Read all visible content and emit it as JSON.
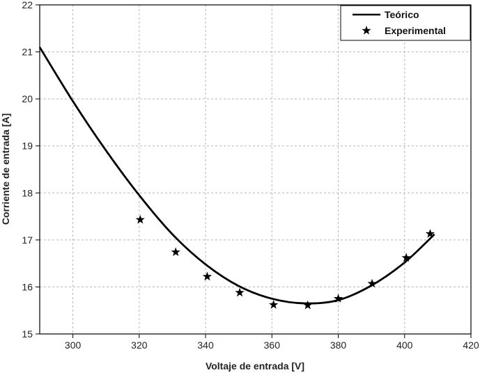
{
  "chart_data": {
    "type": "line",
    "xlabel": "Voltaje de entrada [V]",
    "ylabel": "Corriente de entrada [A]",
    "xlim": [
      290,
      420
    ],
    "ylim": [
      15,
      22
    ],
    "xticks": [
      300,
      320,
      340,
      360,
      380,
      400,
      420
    ],
    "yticks": [
      15,
      16,
      17,
      18,
      19,
      20,
      21,
      22
    ],
    "grid": true,
    "legend_position": "top-right",
    "series": [
      {
        "name": "Teórico",
        "kind": "line",
        "color": "#000000",
        "x": [
          290,
          300,
          310,
          320,
          330,
          340,
          350,
          360,
          370,
          380,
          390,
          400,
          409
        ],
        "y": [
          21.1,
          19.95,
          18.9,
          17.95,
          17.12,
          16.48,
          16.02,
          15.75,
          15.65,
          15.72,
          16.03,
          16.52,
          17.12
        ]
      },
      {
        "name": "Experimental",
        "kind": "scatter",
        "marker": "star",
        "color": "#000000",
        "x": [
          320.3,
          331,
          340.5,
          350.3,
          360.5,
          370.8,
          380,
          390.2,
          400.5,
          407.7
        ],
        "y": [
          17.43,
          16.74,
          16.22,
          15.88,
          15.62,
          15.61,
          15.75,
          16.07,
          16.62,
          17.13
        ]
      }
    ]
  }
}
